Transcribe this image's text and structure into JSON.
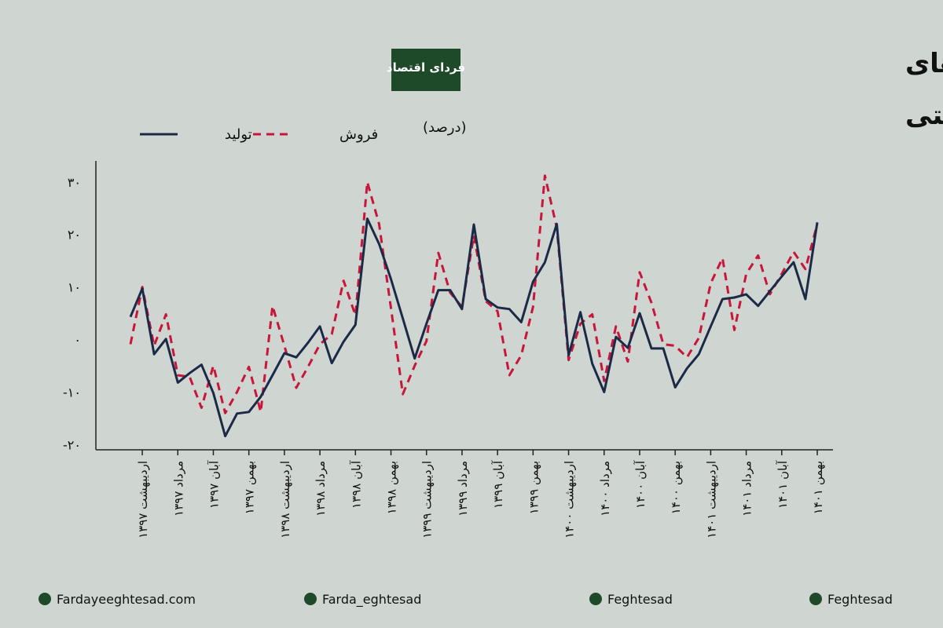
{
  "logo": "فردای اقتصاد",
  "footer": [
    "Fardayeeghtesad.com",
    "Farda_eghtesad",
    "Feghtesad",
    "Feghtesad"
  ],
  "chart_data": {
    "type": "line",
    "title": [
      "رشد نقطه به نقطه شاخص‌های",
      "تولید و فروش فعالیت‌های صنعتی"
    ],
    "subtitle": "(درصد)",
    "categories": [
      null,
      "اردیبهشت ۱۳۹۷",
      null,
      null,
      "مرداد ۱۳۹۷",
      null,
      null,
      "آبان ۱۳۹۷",
      null,
      null,
      "بهمن ۱۳۹۷",
      null,
      null,
      "اردیبهشت ۱۳۹۸",
      null,
      null,
      "مرداد ۱۳۹۸",
      null,
      null,
      "آبان ۱۳۹۸",
      null,
      null,
      "بهمن ۱۳۹۸",
      null,
      null,
      "اردیبهشت ۱۳۹۹",
      null,
      null,
      "مرداد ۱۳۹۹",
      null,
      null,
      "آبان ۱۳۹۹",
      null,
      null,
      "بهمن ۱۳۹۹",
      null,
      null,
      "اردیبهشت ۱۴۰۰",
      null,
      null,
      "مرداد ۱۴۰۰",
      null,
      null,
      "آبان ۱۴۰۰",
      null,
      null,
      "بهمن ۱۴۰۰",
      null,
      null,
      "اردیبهشت ۱۴۰۱",
      null,
      null,
      "مرداد ۱۴۰۱",
      null,
      null,
      "آبان ۱۴۰۱",
      null,
      null,
      "بهمن ۱۴۰۱"
    ],
    "series": [
      {
        "name": "فروش",
        "color": "#c8163a",
        "dashed": true,
        "values": [
          -0.9,
          10,
          -1.2,
          4.8,
          -6.8,
          -7.1,
          -13,
          -5,
          -14,
          -10,
          -5.2,
          -13.8,
          6.4,
          -1.2,
          -9.2,
          -5.2,
          -0.9,
          1,
          11.2,
          4.6,
          30,
          22,
          6,
          -10.4,
          -5,
          -0.3,
          16.5,
          8.9,
          6.2,
          19.8,
          7.3,
          5.4,
          -6.8,
          -3,
          6.2,
          31.2,
          21.3,
          -3.9,
          3,
          4.8,
          -7.9,
          2.5,
          -4.2,
          12.8,
          7,
          -0.9,
          -1.2,
          -3.4,
          0.3,
          10.7,
          15.5,
          1.8,
          12.5,
          16,
          8.6,
          12.5,
          16.7,
          13.4,
          22
        ]
      },
      {
        "name": "تولید",
        "color": "#1b2a47",
        "dashed": false,
        "values": [
          4.3,
          9.7,
          -2.8,
          0.1,
          -8.2,
          -6.4,
          -4.8,
          -10.2,
          -18.4,
          -14.1,
          -13.8,
          -10.9,
          -6.8,
          -2.6,
          -3.4,
          -0.6,
          2.5,
          -4.5,
          -0.4,
          2.8,
          23,
          18.2,
          11.5,
          4,
          -3.6,
          3,
          9.4,
          9.4,
          5.8,
          21.9,
          7.7,
          6.1,
          5.8,
          3.3,
          11,
          14.7,
          22,
          -3,
          5.2,
          -4.6,
          -10,
          0.5,
          -1.6,
          5,
          -1.7,
          -1.7,
          -9.1,
          -5.5,
          -2.8,
          2.5,
          7.7,
          8,
          8.6,
          6.4,
          9.2,
          12,
          14.7,
          7.7,
          22.3
        ]
      }
    ],
    "ylim": [
      -21,
      34
    ],
    "yticks": [
      {
        "value": -20,
        "label": "-۲۰"
      },
      {
        "value": -10,
        "label": "-۱۰"
      },
      {
        "value": 0,
        "label": "۰"
      },
      {
        "value": 10,
        "label": "۱۰"
      },
      {
        "value": 20,
        "label": "۲۰"
      },
      {
        "value": 30,
        "label": "۳۰"
      }
    ],
    "grid": false
  }
}
